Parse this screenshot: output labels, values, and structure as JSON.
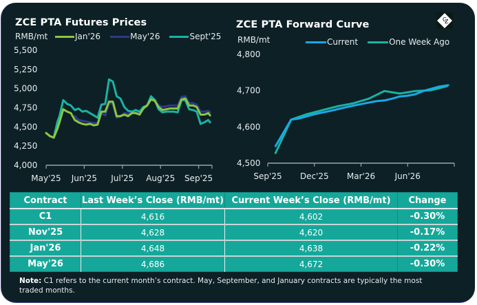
{
  "left_chart": {
    "title": "ZCE PTA Futures Prices",
    "unit": "RMB/mt",
    "legend": [
      {
        "name": "Jan'26",
        "color": "#8cc63f"
      },
      {
        "name": "May'26",
        "color": "#2e3a8c"
      },
      {
        "name": "Sept'25",
        "color": "#1ab3a3"
      }
    ]
  },
  "right_chart": {
    "title": "ZCE PTA Forward Curve",
    "unit": "RMB/mt",
    "legend": [
      {
        "name": "Current",
        "color": "#1aa9e6"
      },
      {
        "name": "One Week Ago",
        "color": "#1ab3a3"
      }
    ]
  },
  "logo": {
    "text": "CZ",
    "icon": "czapp-diamond-logo"
  },
  "chart_data": [
    {
      "type": "line",
      "title": "ZCE PTA Futures Prices",
      "ylabel": "RMB/mt",
      "xlabel": "",
      "ylim": [
        4000,
        5500
      ],
      "yticks": [
        "4,000",
        "4,250",
        "4,500",
        "4,750",
        "5,000",
        "5,250",
        "5,500"
      ],
      "ytick_values": [
        4000,
        4250,
        4500,
        4750,
        5000,
        5250,
        5500
      ],
      "xticks": [
        "May'25",
        "Jun'25",
        "Jul'25",
        "Aug'25",
        "Sep'25"
      ],
      "xlim_months": [
        0,
        4.35
      ],
      "grid": false,
      "legend_position": "top",
      "x": [
        0.0,
        0.1,
        0.2,
        0.3,
        0.35,
        0.45,
        0.55,
        0.65,
        0.75,
        0.85,
        0.95,
        1.05,
        1.15,
        1.25,
        1.35,
        1.45,
        1.55,
        1.65,
        1.75,
        1.85,
        1.95,
        2.05,
        2.15,
        2.25,
        2.35,
        2.45,
        2.55,
        2.65,
        2.75,
        2.85,
        2.95,
        3.05,
        3.15,
        3.25,
        3.35,
        3.45,
        3.55,
        3.65,
        3.75,
        3.85,
        3.95,
        4.05,
        4.15,
        4.25,
        4.3
      ],
      "series": [
        {
          "name": "Sept'25",
          "color": "#1ab3a3",
          "values": [
            4420,
            4380,
            4360,
            4570,
            4640,
            4850,
            4800,
            4780,
            4720,
            4740,
            4700,
            4710,
            4680,
            4650,
            4620,
            4790,
            4800,
            5120,
            5090,
            4900,
            4870,
            4760,
            4710,
            4700,
            4720,
            4700,
            4760,
            4780,
            4900,
            4850,
            4730,
            4690,
            4700,
            4700,
            4700,
            4690,
            4850,
            4850,
            4730,
            4720,
            4700,
            4540,
            4560,
            4590,
            4560
          ]
        },
        {
          "name": "Jan'26",
          "color": "#8cc63f",
          "values": [
            4420,
            4380,
            4360,
            4480,
            4560,
            4730,
            4700,
            4680,
            4590,
            4560,
            4540,
            4530,
            4540,
            4520,
            4530,
            4700,
            4700,
            4830,
            4830,
            4640,
            4640,
            4660,
            4640,
            4680,
            4680,
            4660,
            4740,
            4780,
            4860,
            4840,
            4760,
            4720,
            4730,
            4740,
            4740,
            4740,
            4860,
            4870,
            4780,
            4780,
            4760,
            4660,
            4660,
            4680,
            4650
          ]
        },
        {
          "name": "May'26",
          "color": "#2e3a8c",
          "values": [
            null,
            null,
            null,
            null,
            null,
            null,
            null,
            null,
            4640,
            4590,
            4580,
            4570,
            4560,
            4550,
            4550,
            4680,
            4650,
            4810,
            4800,
            4620,
            4640,
            4680,
            4670,
            4690,
            4690,
            4680,
            4750,
            4780,
            4880,
            4860,
            4780,
            4760,
            4770,
            4780,
            4780,
            4780,
            4890,
            4900,
            4810,
            4810,
            4790,
            4700,
            4700,
            4710,
            4690
          ]
        }
      ]
    },
    {
      "type": "line",
      "title": "ZCE PTA Forward Curve",
      "ylabel": "RMB/mt",
      "xlabel": "",
      "ylim": [
        4500,
        4800
      ],
      "yticks": [
        "4,500",
        "4,600",
        "4,700",
        "4,800"
      ],
      "ytick_values": [
        4500,
        4600,
        4700,
        4800
      ],
      "xticks": [
        "Sep'25",
        "Dec'25",
        "Mar'26",
        "Jun'26"
      ],
      "xlim_months": [
        0,
        12
      ],
      "grid": false,
      "legend_position": "top",
      "series": [
        {
          "name": "Current",
          "color": "#1aa9e6",
          "x": [
            0.5,
            1.5,
            2,
            3,
            4,
            5,
            6,
            7,
            7.5,
            8,
            8.5,
            9,
            9.5,
            10,
            11,
            11.6
          ],
          "values": [
            4547,
            4620,
            4623,
            4635,
            4644,
            4654,
            4663,
            4671,
            4673,
            4678,
            4684,
            4686,
            4690,
            4699,
            4711,
            4715
          ]
        },
        {
          "name": "One Week Ago",
          "color": "#1ab3a3",
          "x": [
            0.5,
            1.5,
            2.5,
            3.5,
            4.5,
            5.5,
            6.5,
            7.5,
            8.5,
            9.5,
            10.5,
            11.5,
            11.6
          ],
          "values": [
            4528,
            4620,
            4635,
            4646,
            4657,
            4665,
            4678,
            4699,
            4692,
            4699,
            4701,
            4712,
            4715
          ]
        }
      ]
    }
  ],
  "table": {
    "headers": [
      "Contract",
      "Last Week’s Close (RMB/mt)",
      "Current Week’s Close (RMB/mt)",
      "Change"
    ],
    "rows": [
      [
        "C1",
        "4,616",
        "4,602",
        "-0.30%"
      ],
      [
        "Nov'25",
        "4,628",
        "4,620",
        "-0.17%"
      ],
      [
        "Jan'26",
        "4,648",
        "4,638",
        "-0.22%"
      ],
      [
        "May'26",
        "4,686",
        "4,672",
        "-0.30%"
      ]
    ]
  },
  "note": {
    "label": "Note:",
    "text": " C1 refers to the current month’s contract. May, September, and January contracts are typically the most traded months."
  }
}
